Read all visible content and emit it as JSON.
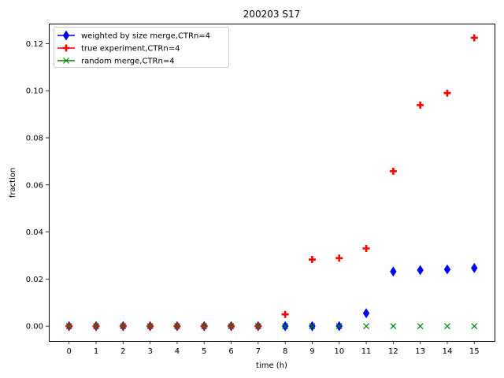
{
  "chart_data": {
    "type": "scatter",
    "title": "200203 S17",
    "xlabel": "time (h)",
    "ylabel": "fraction",
    "x": [
      0,
      1,
      2,
      3,
      4,
      5,
      6,
      7,
      8,
      9,
      10,
      11,
      12,
      13,
      14,
      15
    ],
    "xlim": [
      -0.75,
      15.75
    ],
    "ylim": [
      -0.0063,
      0.1285
    ],
    "xticks": [
      0,
      1,
      2,
      3,
      4,
      5,
      6,
      7,
      8,
      9,
      10,
      11,
      12,
      13,
      14,
      15
    ],
    "yticks": [
      0.0,
      0.02,
      0.04,
      0.06,
      0.08,
      0.1,
      0.12
    ],
    "ytick_labels": [
      "0.00",
      "0.02",
      "0.04",
      "0.06",
      "0.08",
      "0.10",
      "0.12"
    ],
    "grid": false,
    "legend_position": "top-left",
    "series": [
      {
        "name": "weighted by size merge,CTRn=4",
        "marker": "thin-diamond",
        "color": "#0000ff",
        "values": [
          0,
          0,
          0,
          0,
          0,
          0,
          0,
          0,
          0,
          0,
          0,
          0.0055,
          0.0232,
          0.0238,
          0.0241,
          0.0247
        ]
      },
      {
        "name": "true experiment,CTRn=4",
        "marker": "plus",
        "color": "#ff0000",
        "values": [
          0,
          0,
          0,
          0,
          0,
          0,
          0,
          0,
          0.005,
          0.0283,
          0.0289,
          0.033,
          0.0658,
          0.0939,
          0.099,
          0.1225
        ]
      },
      {
        "name": "random merge,CTRn=4",
        "marker": "x",
        "color": "#008000",
        "values": [
          0,
          0,
          0,
          0,
          0,
          0,
          0,
          0,
          0,
          0,
          0,
          0,
          0,
          0,
          0,
          0
        ]
      }
    ]
  }
}
